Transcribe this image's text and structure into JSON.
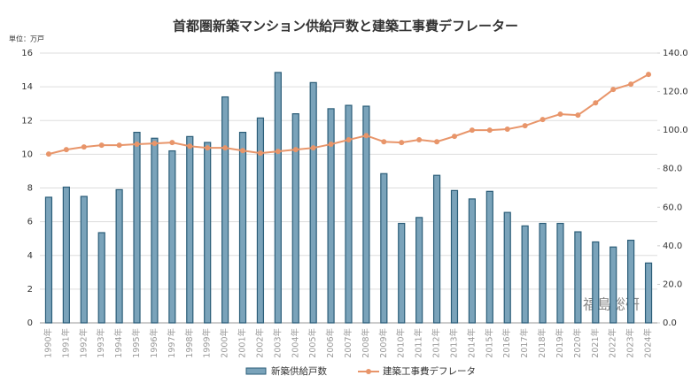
{
  "chart_data": {
    "type": "bar_line",
    "title": "首都圏新築マンション供給戸数と建築工事費デフレーター",
    "unit_label": "単位：万戸",
    "watermark": "福島総研",
    "categories": [
      "1990年",
      "1991年",
      "1992年",
      "1993年",
      "1994年",
      "1995年",
      "1996年",
      "1997年",
      "1998年",
      "1999年",
      "2000年",
      "2001年",
      "2002年",
      "2003年",
      "2004年",
      "2005年",
      "2006年",
      "2007年",
      "2008年",
      "2009年",
      "2010年",
      "2011年",
      "2012年",
      "2013年",
      "2014年",
      "2015年",
      "2016年",
      "2017年",
      "2018年",
      "2019年",
      "2020年",
      "2021年",
      "2022年",
      "2023年",
      "2024年"
    ],
    "series": [
      {
        "name": "新築供給戸数",
        "color": "#7aa3ba",
        "edge": "#2b5d78",
        "kind": "bar",
        "values": [
          7.45,
          8.05,
          7.5,
          5.35,
          7.9,
          11.3,
          10.95,
          10.2,
          11.05,
          10.7,
          13.4,
          11.3,
          12.15,
          14.85,
          12.4,
          14.25,
          12.7,
          12.9,
          12.85,
          8.85,
          5.9,
          6.25,
          8.75,
          7.85,
          7.35,
          7.8,
          6.55,
          5.75,
          5.9,
          5.9,
          5.4,
          4.8,
          4.5,
          4.9,
          3.55
        ]
      },
      {
        "name": "建築工事費デフレータ",
        "color": "#e8956a",
        "kind": "line",
        "axis": "y2",
        "values": [
          87.6,
          89.9,
          91.3,
          92.2,
          92.2,
          92.7,
          93.1,
          93.6,
          91.7,
          90.8,
          90.8,
          89.4,
          88.1,
          89.0,
          89.9,
          90.8,
          92.7,
          95.0,
          97.2,
          94.0,
          93.6,
          95.0,
          94.0,
          96.8,
          100.0,
          100.0,
          100.5,
          102.3,
          105.5,
          108.3,
          107.8,
          114.2,
          121.1,
          123.9,
          128.9
        ]
      }
    ],
    "ylim": [
      0,
      16
    ],
    "yticks": [
      0,
      2,
      4,
      6,
      8,
      10,
      12,
      14,
      16
    ],
    "y2lim": [
      0,
      140
    ],
    "y2ticks": [
      {
        "value": 0,
        "label": "0.0"
      },
      {
        "value": 20,
        "label": "20.0"
      },
      {
        "value": 40,
        "label": "40.0"
      },
      {
        "value": 60,
        "label": "60.0"
      },
      {
        "value": 80,
        "label": "80.0"
      },
      {
        "value": 100,
        "label": "100.0"
      },
      {
        "value": 120,
        "label": "120.0"
      },
      {
        "value": 140,
        "label": "140.0"
      }
    ],
    "grid": true
  }
}
